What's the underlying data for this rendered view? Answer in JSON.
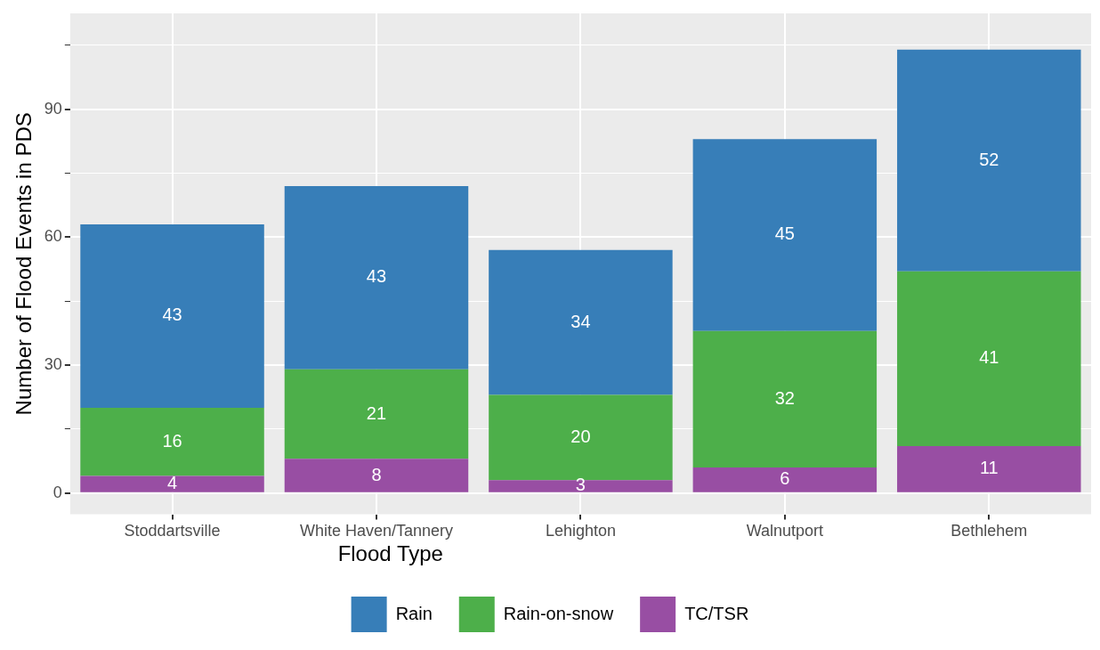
{
  "chart_data": {
    "type": "bar",
    "stacked": true,
    "ylabel": "Number of Flood Events in PDS",
    "legend_title": "Flood Type",
    "legend": "bottom",
    "grid": true,
    "data_labels": true,
    "categories": [
      "Stoddartsville",
      "White Haven/Tannery",
      "Lehighton",
      "Walnutport",
      "Bethlehem"
    ],
    "ylim": [
      -5,
      112.5
    ],
    "yticks": [
      0,
      {
        "value": 15,
        "label": null
      },
      30,
      {
        "value": 45,
        "label": null
      },
      60,
      {
        "value": 75,
        "label": null
      },
      90,
      {
        "value": 105,
        "label": null
      }
    ],
    "series": [
      {
        "name": "TC/TSR",
        "color": "#984ea3",
        "values": [
          4,
          8,
          3,
          6,
          11
        ]
      },
      {
        "name": "Rain-on-snow",
        "color": "#4daf4a",
        "values": [
          16,
          21,
          20,
          32,
          41
        ]
      },
      {
        "name": "Rain",
        "color": "#377eb8",
        "values": [
          43,
          43,
          34,
          45,
          52
        ]
      }
    ]
  }
}
